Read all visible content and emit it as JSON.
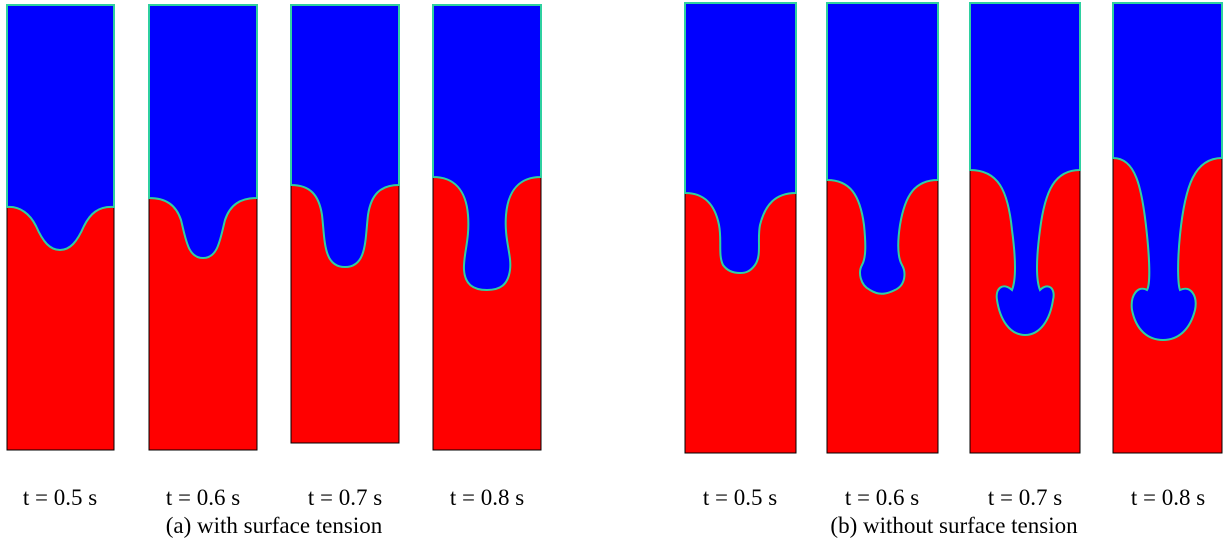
{
  "panels": [
    {
      "caption": "(a) with surface tension",
      "frames": [
        {
          "label": "t = 0.5 s"
        },
        {
          "label": "t = 0.6 s"
        },
        {
          "label": "t = 0.7 s"
        },
        {
          "label": "t = 0.8 s"
        }
      ]
    },
    {
      "caption": "(b) without surface tension",
      "frames": [
        {
          "label": "t = 0.5 s"
        },
        {
          "label": "t = 0.6 s"
        },
        {
          "label": "t = 0.7 s"
        },
        {
          "label": "t = 0.8 s"
        }
      ]
    }
  ]
}
